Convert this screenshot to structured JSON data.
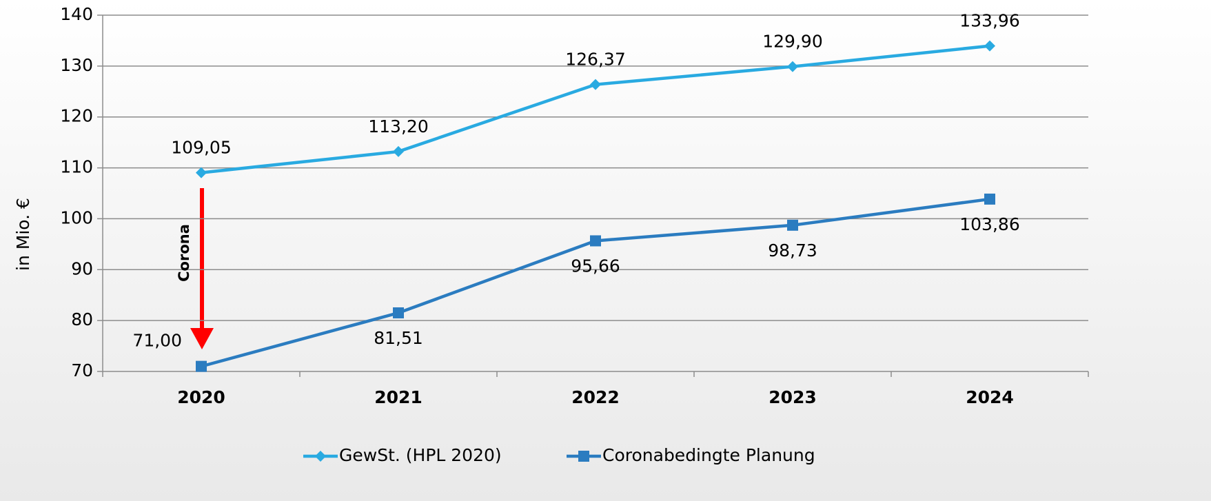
{
  "chart_data": {
    "type": "line",
    "y_label": "in Mio. €",
    "categories": [
      "2020",
      "2021",
      "2022",
      "2023",
      "2024"
    ],
    "series": [
      {
        "name": "GewSt. (HPL 2020)",
        "color": "#29aae1",
        "marker": "diamond",
        "values": [
          109.05,
          113.2,
          126.37,
          129.9,
          133.96
        ],
        "value_labels": [
          "109,05",
          "113,20",
          "126,37",
          "129,90",
          "133,96"
        ]
      },
      {
        "name": "Coronabedingte Planung",
        "color": "#2b7cc0",
        "marker": "square",
        "values": [
          71.0,
          81.51,
          95.66,
          98.73,
          103.86
        ],
        "value_labels": [
          "71,00",
          "81,51",
          "95,66",
          "98,73",
          "103,86"
        ]
      }
    ],
    "ylim": [
      70,
      140
    ],
    "yticks": [
      70,
      80,
      90,
      100,
      110,
      120,
      130,
      140
    ],
    "grid": true,
    "legend": "bottom",
    "annotation": {
      "text": "Corona",
      "color": "#ff0000"
    }
  }
}
